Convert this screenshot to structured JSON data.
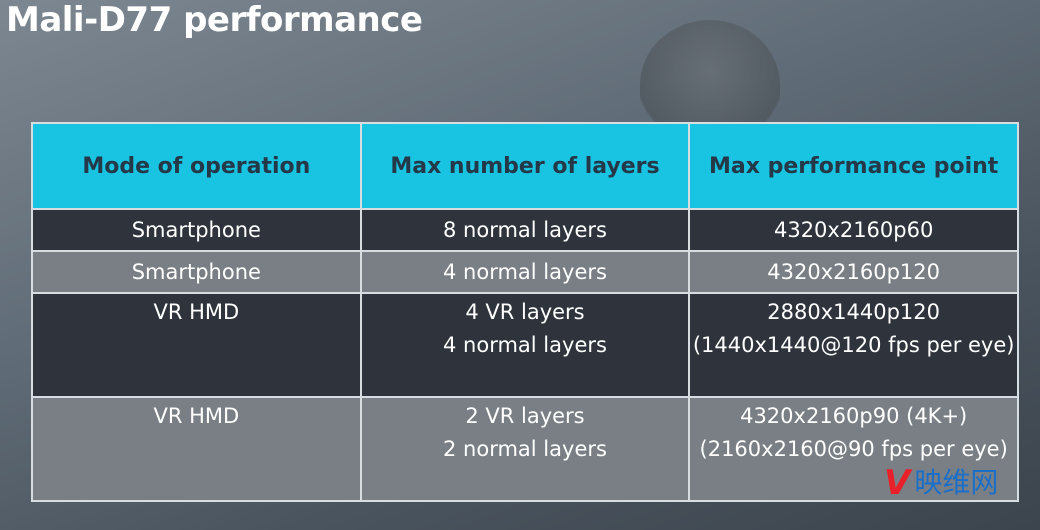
{
  "title": "Mali-D77 performance",
  "table": {
    "headers": [
      "Mode of operation",
      "Max number of layers",
      "Max performance point"
    ],
    "rows": [
      {
        "mode": "Smartphone",
        "layers": [
          "8 normal layers"
        ],
        "perf": [
          "4320x2160p60"
        ]
      },
      {
        "mode": "Smartphone",
        "layers": [
          "4 normal layers"
        ],
        "perf": [
          "4320x2160p120"
        ]
      },
      {
        "mode": "VR HMD",
        "layers": [
          "4 VR layers",
          "4 normal layers"
        ],
        "perf": [
          "2880x1440p120",
          "(1440x1440@120 fps per eye)"
        ]
      },
      {
        "mode": "VR HMD",
        "layers": [
          "2 VR layers",
          "2 normal layers"
        ],
        "perf": [
          "4320x2160p90 (4K+)",
          "(2160x2160@90 fps per eye)"
        ]
      }
    ]
  },
  "watermark": {
    "logo": "V",
    "text": "映维网"
  },
  "colors": {
    "header_bg": "#19c3e2",
    "dark_row": "#2f343c",
    "light_row": "#7a7f85"
  }
}
